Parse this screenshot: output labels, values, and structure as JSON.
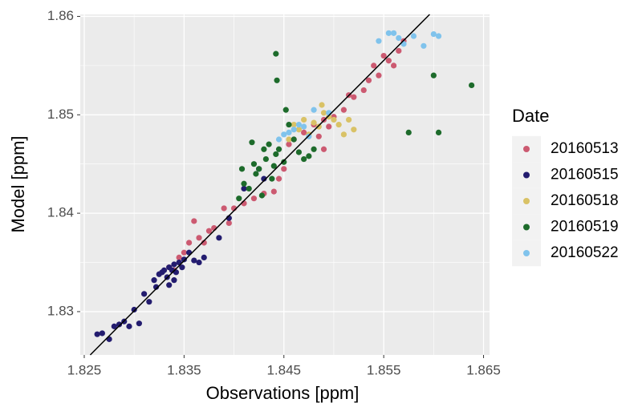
{
  "chart_data": {
    "type": "scatter",
    "x_label": "Observations [ppm]",
    "y_label": "Model  [ppm]",
    "legend_title": "Date",
    "legend_position": "right",
    "grid": true,
    "xlim": [
      1.8246,
      1.8656
    ],
    "ylim": [
      1.8256,
      1.8602
    ],
    "xticks": [
      1.825,
      1.835,
      1.845,
      1.855,
      1.865
    ],
    "yticks": [
      1.83,
      1.84,
      1.85,
      1.86
    ],
    "fit_line": {
      "color": "#000000",
      "x": [
        1.8256,
        1.8596
      ],
      "y": [
        1.8256,
        1.8602
      ]
    },
    "series": [
      {
        "name": "20160513",
        "color": "#cc5a71",
        "x": [
          1.8335,
          1.834,
          1.8345,
          1.835,
          1.8355,
          1.836,
          1.8365,
          1.837,
          1.8375,
          1.838,
          1.839,
          1.8395,
          1.84,
          1.841,
          1.842,
          1.843,
          1.844,
          1.8445,
          1.845,
          1.8455,
          1.846,
          1.847,
          1.848,
          1.8485,
          1.849,
          1.8495,
          1.85,
          1.851,
          1.8515,
          1.852,
          1.853,
          1.8535,
          1.854,
          1.8545,
          1.855,
          1.8555,
          1.856,
          1.8565,
          1.857,
          1.849
        ],
        "values": [
          1.8345,
          1.8342,
          1.8355,
          1.836,
          1.837,
          1.8392,
          1.8375,
          1.837,
          1.8382,
          1.8385,
          1.8405,
          1.839,
          1.8405,
          1.841,
          1.8415,
          1.842,
          1.8422,
          1.8435,
          1.8445,
          1.847,
          1.8475,
          1.8482,
          1.849,
          1.8478,
          1.8495,
          1.8488,
          1.8498,
          1.8505,
          1.852,
          1.8518,
          1.8525,
          1.8535,
          1.855,
          1.854,
          1.856,
          1.8555,
          1.855,
          1.8565,
          1.8575,
          1.8465
        ]
      },
      {
        "name": "20160515",
        "color": "#231c6f",
        "x": [
          1.8263,
          1.8268,
          1.8275,
          1.828,
          1.8285,
          1.829,
          1.8295,
          1.83,
          1.8305,
          1.831,
          1.8315,
          1.832,
          1.8322,
          1.8325,
          1.8328,
          1.833,
          1.8333,
          1.8335,
          1.8338,
          1.834,
          1.8342,
          1.8345,
          1.8348,
          1.835,
          1.8355,
          1.836,
          1.8365,
          1.837,
          1.8335,
          1.834,
          1.8385,
          1.8395,
          1.841,
          1.843,
          1.8425
        ],
        "values": [
          1.8277,
          1.8278,
          1.8272,
          1.8285,
          1.8287,
          1.829,
          1.8285,
          1.8302,
          1.8288,
          1.8318,
          1.831,
          1.8332,
          1.8325,
          1.8338,
          1.834,
          1.8342,
          1.8335,
          1.8345,
          1.8342,
          1.8348,
          1.834,
          1.835,
          1.8345,
          1.8353,
          1.836,
          1.8352,
          1.835,
          1.8355,
          1.8327,
          1.8332,
          1.8375,
          1.8395,
          1.8425,
          1.8435,
          1.8445
        ]
      },
      {
        "name": "20160518",
        "color": "#d9c266",
        "x": [
          1.8455,
          1.846,
          1.8465,
          1.847,
          1.8475,
          1.848,
          1.8485,
          1.849,
          1.8495,
          1.85,
          1.8505,
          1.851,
          1.8515,
          1.852,
          1.8488
        ],
        "values": [
          1.8475,
          1.849,
          1.8485,
          1.8495,
          1.848,
          1.8492,
          1.8488,
          1.8502,
          1.8498,
          1.8495,
          1.849,
          1.848,
          1.8495,
          1.8485,
          1.851
        ]
      },
      {
        "name": "20160519",
        "color": "#1d6b2b",
        "x": [
          1.8405,
          1.841,
          1.8415,
          1.842,
          1.8422,
          1.8425,
          1.843,
          1.8432,
          1.8435,
          1.844,
          1.8442,
          1.8445,
          1.845,
          1.8455,
          1.846,
          1.8465,
          1.847,
          1.8475,
          1.848,
          1.8438,
          1.8428,
          1.8443,
          1.8452,
          1.8418,
          1.8408,
          1.8575,
          1.8605,
          1.86,
          1.8638,
          1.8442
        ],
        "values": [
          1.8415,
          1.843,
          1.8425,
          1.845,
          1.844,
          1.8445,
          1.8465,
          1.8455,
          1.847,
          1.8448,
          1.846,
          1.8465,
          1.8452,
          1.849,
          1.8475,
          1.8462,
          1.8455,
          1.8458,
          1.8465,
          1.8435,
          1.8418,
          1.8535,
          1.8505,
          1.8472,
          1.8445,
          1.8482,
          1.8482,
          1.854,
          1.853,
          1.8562
        ]
      },
      {
        "name": "20160522",
        "color": "#80c3ec",
        "x": [
          1.8445,
          1.845,
          1.8455,
          1.846,
          1.8465,
          1.847,
          1.8475,
          1.848,
          1.8495,
          1.8545,
          1.8555,
          1.856,
          1.8565,
          1.857,
          1.858,
          1.859,
          1.86,
          1.8605
        ],
        "values": [
          1.8475,
          1.848,
          1.8482,
          1.8485,
          1.849,
          1.8488,
          1.8478,
          1.8505,
          1.8502,
          1.8575,
          1.8583,
          1.8583,
          1.8578,
          1.8572,
          1.858,
          1.857,
          1.8582,
          1.858
        ]
      }
    ]
  }
}
